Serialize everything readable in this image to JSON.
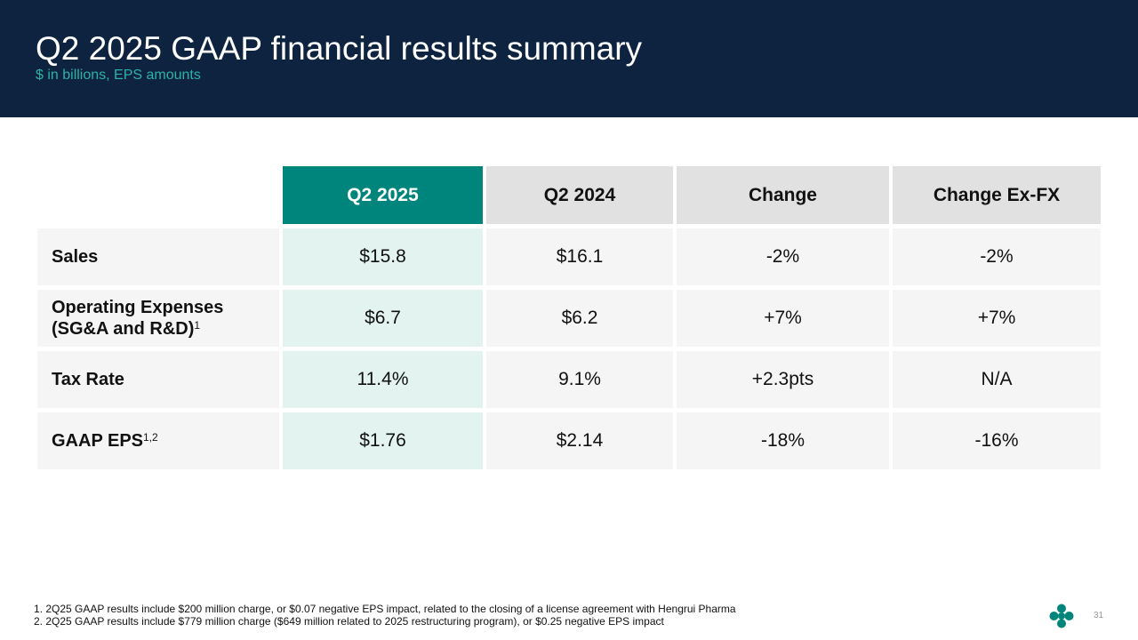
{
  "header": {
    "title": "Q2 2025 GAAP financial results summary",
    "subtitle": "$ in billions, EPS amounts"
  },
  "table": {
    "columns": [
      "Q2 2025",
      "Q2 2024",
      "Change",
      "Change Ex-FX"
    ],
    "rows": [
      {
        "label": "Sales",
        "cells": [
          "$15.8",
          "$16.1",
          "-2%",
          "-2%"
        ]
      },
      {
        "label": "Operating Expenses (SG&A and R&D)",
        "sup": "1",
        "cells": [
          "$6.7",
          "$6.2",
          "+7%",
          "+7%"
        ]
      },
      {
        "label": "Tax Rate",
        "cells": [
          "11.4%",
          "9.1%",
          "+2.3pts",
          "N/A"
        ]
      },
      {
        "label": "GAAP EPS",
        "sup": "1,2",
        "cells": [
          "$1.76",
          "$2.14",
          "-18%",
          "-16%"
        ]
      }
    ]
  },
  "footnotes": [
    "1. 2Q25 GAAP results include $200 million charge, or $0.07 negative EPS impact, related to the closing of a license agreement with Hengrui Pharma",
    "2. 2Q25 GAAP results include $779 million charge ($649 million related to 2025 restructuring program), or $0.25 negative EPS impact"
  ],
  "page_number": "31"
}
